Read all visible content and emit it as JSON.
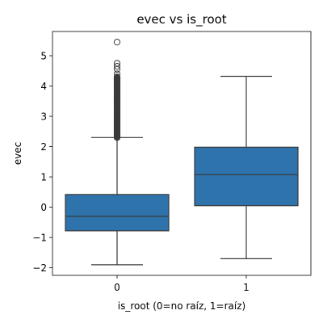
{
  "chart_data": {
    "type": "box",
    "title": "evec vs is_root",
    "xlabel": "is_root (0=no raíz, 1=raíz)",
    "ylabel": "evec",
    "categories": [
      "0",
      "1"
    ],
    "ylim": [
      -2.25,
      5.8
    ],
    "yticks": [
      -2,
      -1,
      0,
      1,
      2,
      3,
      4,
      5
    ],
    "ytick_labels": [
      "−2",
      "−1",
      "0",
      "1",
      "2",
      "3",
      "4",
      "5"
    ],
    "grid": false,
    "box_color": "#2e73ab",
    "line_color": "#3a3a3a",
    "boxes": [
      {
        "category": "0",
        "whisker_low": -1.9,
        "q1": -0.78,
        "median": -0.3,
        "q3": 0.42,
        "whisker_high": 2.3,
        "outlier_band": [
          2.3,
          4.3
        ],
        "outliers": [
          4.4,
          4.55,
          4.65,
          4.75,
          5.45
        ]
      },
      {
        "category": "1",
        "whisker_low": -1.7,
        "q1": 0.05,
        "median": 1.07,
        "q3": 1.98,
        "whisker_high": 4.32,
        "outliers": []
      }
    ]
  }
}
